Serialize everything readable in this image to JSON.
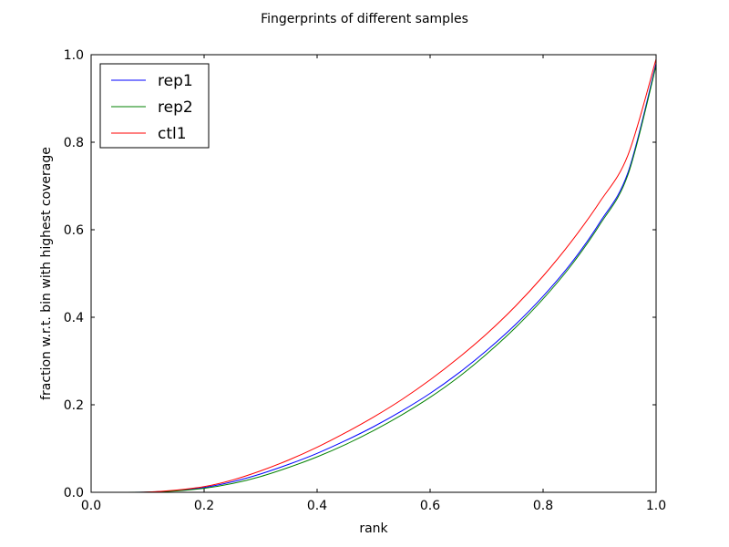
{
  "chart_data": {
    "type": "line",
    "title": "Fingerprints of different samples",
    "xlabel": "rank",
    "ylabel": "fraction w.r.t. bin with highest coverage",
    "xlim": [
      0,
      1
    ],
    "ylim": [
      0,
      1
    ],
    "xticks": [
      "0.0",
      "0.2",
      "0.4",
      "0.6",
      "0.8",
      "1.0"
    ],
    "yticks": [
      "0.0",
      "0.2",
      "0.4",
      "0.6",
      "0.8",
      "1.0"
    ],
    "grid": false,
    "legend_position": "top-left",
    "x": [
      0,
      0.05,
      0.1,
      0.15,
      0.2,
      0.25,
      0.3,
      0.35,
      0.4,
      0.45,
      0.5,
      0.55,
      0.6,
      0.65,
      0.7,
      0.75,
      0.8,
      0.85,
      0.9,
      0.95,
      1.0
    ],
    "series": [
      {
        "name": "rep1",
        "color": "#0000ff",
        "values": [
          0,
          0,
          0.0005,
          0.004,
          0.011,
          0.024,
          0.042,
          0.064,
          0.089,
          0.118,
          0.15,
          0.186,
          0.226,
          0.272,
          0.324,
          0.382,
          0.448,
          0.524,
          0.616,
          0.73,
          0.98
        ]
      },
      {
        "name": "rep2",
        "color": "#008000",
        "values": [
          0,
          0,
          0.0004,
          0.003,
          0.009,
          0.02,
          0.036,
          0.057,
          0.081,
          0.109,
          0.141,
          0.177,
          0.217,
          0.263,
          0.316,
          0.375,
          0.442,
          0.519,
          0.611,
          0.725,
          0.975
        ]
      },
      {
        "name": "ctl1",
        "color": "#ff0000",
        "values": [
          0,
          0,
          0.0006,
          0.005,
          0.013,
          0.028,
          0.049,
          0.074,
          0.103,
          0.136,
          0.172,
          0.212,
          0.257,
          0.307,
          0.362,
          0.424,
          0.494,
          0.573,
          0.663,
          0.77,
          0.99
        ]
      }
    ]
  }
}
